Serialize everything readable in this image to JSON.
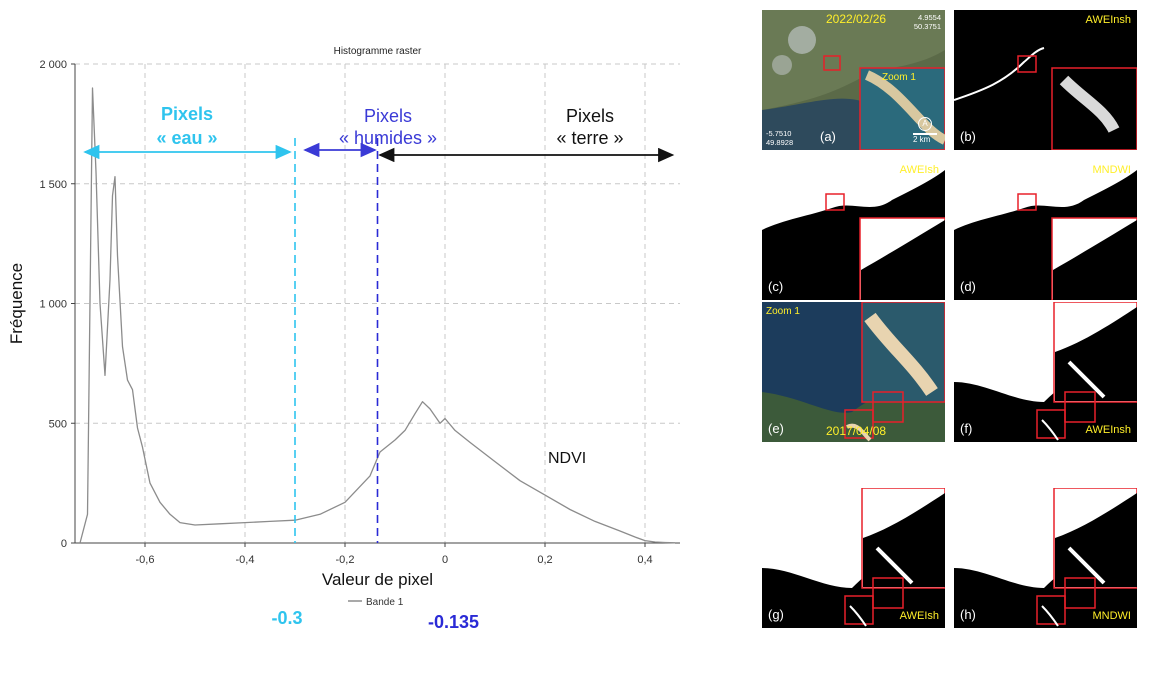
{
  "chart_data": {
    "type": "line",
    "title": "Histogramme raster",
    "xlabel": "Valeur de pixel",
    "ylabel": "Fréquence",
    "xlim": [
      -0.74,
      0.47
    ],
    "ylim": [
      0,
      2000
    ],
    "xticks": [
      -0.6,
      -0.4,
      -0.2,
      0,
      0.2,
      0.4
    ],
    "xtick_labels": [
      "-0,6",
      "-0,4",
      "-0,2",
      "0",
      "0,2",
      "0,4"
    ],
    "yticks": [
      0,
      500,
      1000,
      1500,
      2000
    ],
    "ytick_labels": [
      "0",
      "500",
      "1 000",
      "1 500",
      "2 000"
    ],
    "legend": "Bande 1",
    "series_label": "NDVI",
    "series": [
      {
        "name": "Bande 1",
        "x": [
          -0.73,
          -0.715,
          -0.705,
          -0.698,
          -0.69,
          -0.68,
          -0.67,
          -0.665,
          -0.66,
          -0.655,
          -0.645,
          -0.635,
          -0.625,
          -0.615,
          -0.605,
          -0.59,
          -0.57,
          -0.55,
          -0.53,
          -0.5,
          -0.45,
          -0.4,
          -0.35,
          -0.3,
          -0.25,
          -0.2,
          -0.15,
          -0.13,
          -0.1,
          -0.08,
          -0.06,
          -0.045,
          -0.03,
          -0.01,
          0,
          0.02,
          0.05,
          0.1,
          0.15,
          0.2,
          0.25,
          0.3,
          0.35,
          0.38,
          0.4,
          0.42,
          0.44,
          0.46
        ],
        "y": [
          0,
          120,
          1900,
          1550,
          1000,
          700,
          1100,
          1450,
          1530,
          1200,
          820,
          680,
          640,
          480,
          400,
          250,
          170,
          120,
          85,
          75,
          80,
          85,
          90,
          95,
          120,
          170,
          280,
          380,
          430,
          470,
          540,
          590,
          560,
          500,
          520,
          470,
          420,
          340,
          260,
          200,
          140,
          90,
          50,
          25,
          10,
          4,
          2,
          1
        ]
      }
    ],
    "thresholds": [
      {
        "x": -0.3,
        "label": "-0.3",
        "color": "#2fc4ee"
      },
      {
        "x": -0.135,
        "label": "-0.135",
        "color": "#2a2ad6"
      }
    ],
    "annotations": [
      {
        "line1": "Pixels",
        "line2": "« eau »",
        "color": "#2fc4ee",
        "x_from": -0.72,
        "x_to": -0.31
      },
      {
        "line1": "Pixels",
        "line2": "« humides »",
        "color": "#3a3ad6",
        "x_from": -0.28,
        "x_to": -0.14
      },
      {
        "line1": "Pixels",
        "line2": "« terre »",
        "color": "#111111",
        "x_from": -0.13,
        "x_to": 0.455
      }
    ]
  },
  "panels": [
    {
      "label": "(a)",
      "kind": "rgb",
      "date": "2022/02/26",
      "coord_top": [
        "4.9554",
        "50.3751"
      ],
      "coord_bottom": [
        "-5.7510",
        "49.8928"
      ],
      "zoom_label": "Zoom 1",
      "scale": "2 km"
    },
    {
      "label": "(b)",
      "kind": "mask_black",
      "name": "AWEInsh"
    },
    {
      "label": "(c)",
      "kind": "mask_white",
      "name": "AWEIsh"
    },
    {
      "label": "(d)",
      "kind": "mask_white",
      "name": "MNDWI"
    },
    {
      "label": "(e)",
      "kind": "rgb2",
      "date": "2017/04/08",
      "zoom_label": "Zoom 1"
    },
    {
      "label": "(f)",
      "kind": "mask2",
      "name": "AWEInsh"
    },
    {
      "label": "(g)",
      "kind": "mask2",
      "name": "AWEIsh"
    },
    {
      "label": "(h)",
      "kind": "mask2",
      "name": "MNDWI"
    }
  ],
  "colors": {
    "water": "#2fc4ee",
    "humid": "#3a3ad6",
    "land": "#111111",
    "curve": "#8c8c8c",
    "zoom_box": "#e8202a",
    "panel_text": "#ffef2a"
  }
}
